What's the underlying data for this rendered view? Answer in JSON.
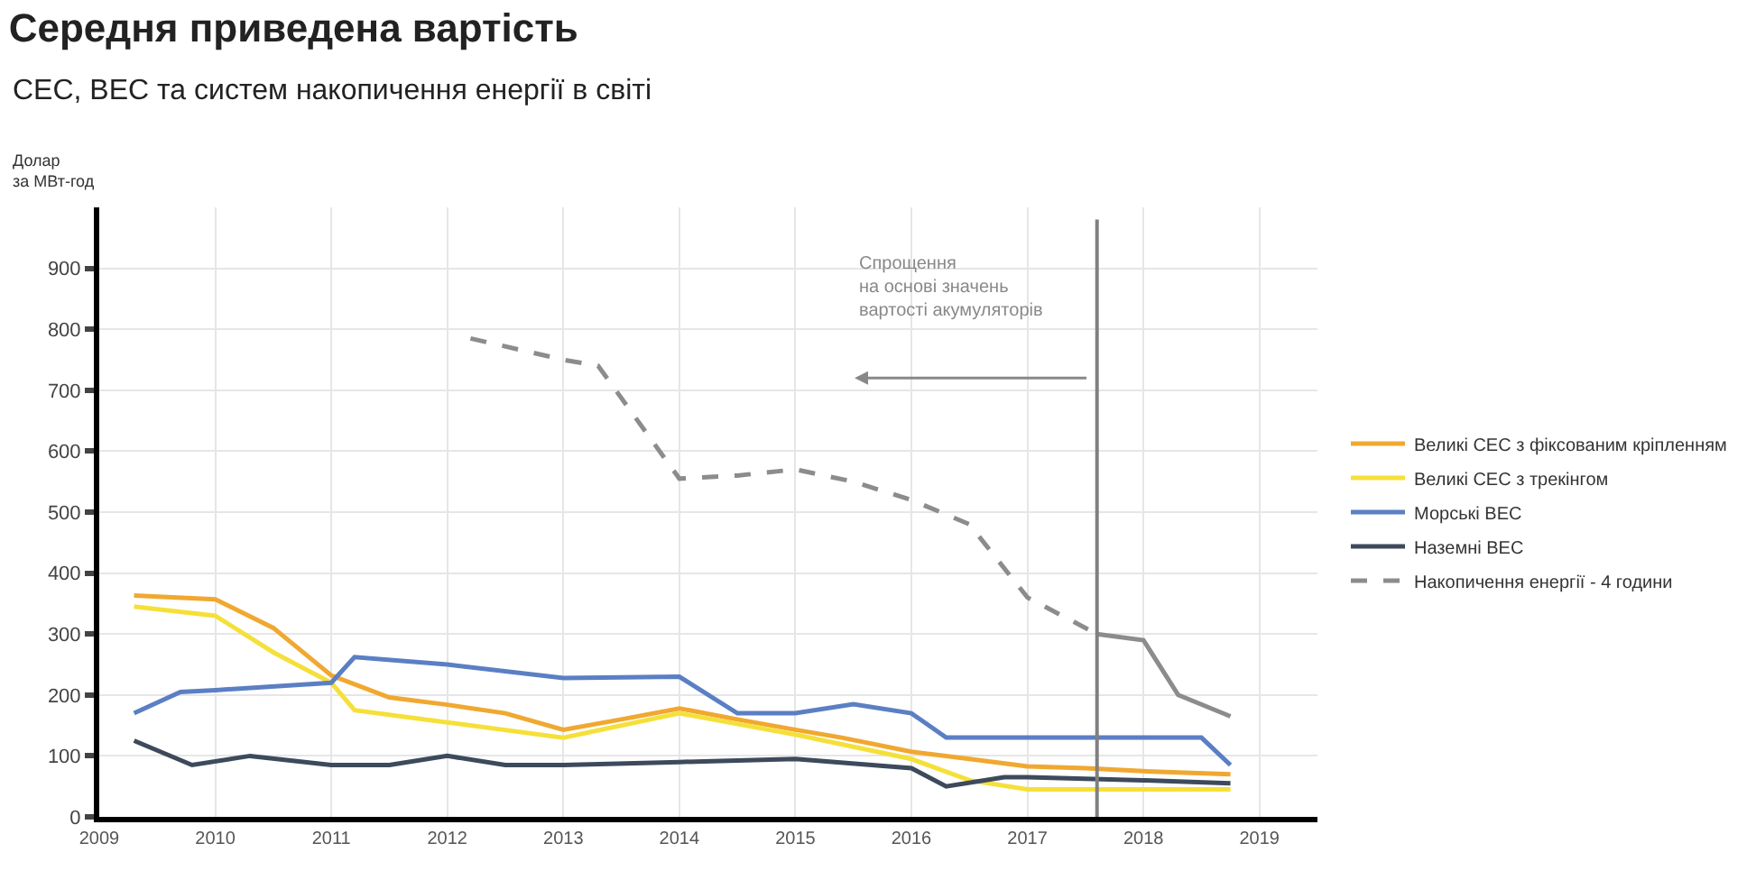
{
  "chart_data": {
    "type": "line",
    "title": "Середня приведена вартість",
    "subtitle": "СЕС, ВЕС та систем накопичення енергії в світі",
    "ylabel": "Долар\nза МВт-год",
    "xlim": [
      2009,
      2019.5
    ],
    "xticks": [
      2009,
      2010,
      2011,
      2012,
      2013,
      2014,
      2015,
      2016,
      2017,
      2018,
      2019
    ],
    "ylim": [
      0,
      1000
    ],
    "yticks": [
      0,
      100,
      200,
      300,
      400,
      500,
      600,
      700,
      800,
      900
    ],
    "grid": true,
    "legend": "right",
    "marker": "none",
    "series": [
      {
        "name": "Великі СЕС з фіксованим кріпленням",
        "color": "#f0a830",
        "line_style": "solid",
        "x": [
          2009.3,
          2010,
          2010.5,
          2011,
          2011.5,
          2012,
          2012.5,
          2013,
          2013.5,
          2014,
          2014.5,
          2015,
          2015.4,
          2016,
          2016.5,
          2017,
          2017.5,
          2018,
          2018.75
        ],
        "values": [
          363,
          357,
          310,
          232,
          196,
          184,
          170,
          143,
          160,
          178,
          160,
          143,
          130,
          107,
          95,
          83,
          80,
          75,
          70
        ]
      },
      {
        "name": "Великі СЕС з трекінгом",
        "color": "#f5e03a",
        "line_style": "solid",
        "x": [
          2009.3,
          2010,
          2010.5,
          2011,
          2011.2,
          2012,
          2013,
          2014,
          2015,
          2016,
          2016.5,
          2017,
          2018,
          2018.75
        ],
        "values": [
          345,
          330,
          270,
          220,
          175,
          155,
          130,
          170,
          135,
          95,
          60,
          45,
          45,
          45
        ]
      },
      {
        "name": "Морські ВЕС",
        "color": "#5b7fc4",
        "line_style": "solid",
        "x": [
          2009.3,
          2009.7,
          2010,
          2011,
          2011.2,
          2012,
          2013,
          2014,
          2014.5,
          2015,
          2015.5,
          2016,
          2016.3,
          2017,
          2018,
          2018.5,
          2018.75
        ],
        "values": [
          170,
          205,
          208,
          220,
          262,
          250,
          228,
          230,
          170,
          170,
          185,
          170,
          130,
          130,
          130,
          130,
          85
        ]
      },
      {
        "name": "Наземні ВЕС",
        "color": "#3d4a5c",
        "line_style": "solid",
        "x": [
          2009.3,
          2009.8,
          2010.3,
          2011,
          2011.5,
          2012,
          2012.5,
          2013,
          2014,
          2015,
          2016,
          2016.3,
          2016.8,
          2017,
          2018,
          2018.75
        ],
        "values": [
          125,
          85,
          100,
          85,
          85,
          100,
          85,
          85,
          90,
          95,
          80,
          50,
          65,
          65,
          60,
          55
        ]
      },
      {
        "name": "Накопичення енергії - 4 години",
        "color": "#8c8c8c",
        "line_style": "dashed",
        "x": [
          2012.2,
          2013,
          2013.3,
          2014,
          2014.5,
          2015,
          2015.5,
          2016,
          2016.5,
          2017,
          2017.6
        ],
        "values": [
          785,
          750,
          740,
          555,
          560,
          570,
          550,
          520,
          480,
          360,
          300
        ]
      },
      {
        "color": "#8c8c8c",
        "line_style": "solid",
        "x": [
          2017.6,
          2018,
          2018.3,
          2018.75
        ],
        "values": [
          300,
          290,
          200,
          165
        ]
      }
    ],
    "ref_lines": [
      {
        "axis": "x",
        "value": 2017.6,
        "color": "#808080"
      }
    ],
    "annotations": [
      "Спрощення\nна основі значень\nвартості акумуляторів"
    ]
  }
}
